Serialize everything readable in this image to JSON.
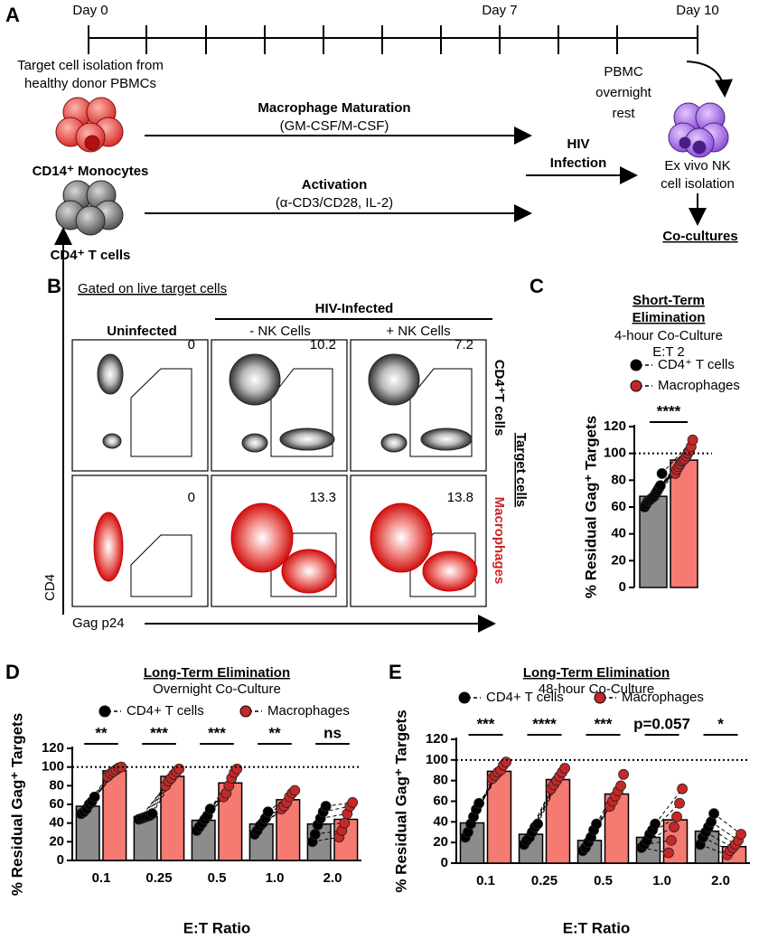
{
  "panel_a": {
    "letter": "A",
    "days": [
      "Day 0",
      "Day 7",
      "Day 10"
    ],
    "isolation": [
      "Target cell isolation from",
      "healthy donor PBMCs"
    ],
    "monocytes": "CD14⁺ Monocytes",
    "tcells": "CD4⁺ T cells",
    "maturation": "Macrophage Maturation",
    "maturation_detail": "(GM-CSF/M-CSF)",
    "activation": "Activation",
    "activation_detail": "(α-CD3/CD28, IL-2)",
    "infection": [
      "HIV",
      "Infection"
    ],
    "rest": [
      "PBMC",
      "overnight",
      "rest"
    ],
    "nk": [
      "Ex vivo NK",
      "cell isolation"
    ],
    "cocultures": "Co-cultures"
  },
  "panel_b": {
    "letter": "B",
    "gating": "Gated on live target cells",
    "infected": "HIV-Infected",
    "columns": [
      "Uninfected",
      "- NK Cells",
      "+ NK Cells"
    ],
    "rows": [
      "CD4⁺T cells",
      "Macrophages"
    ],
    "row_group": "Target cells",
    "y_axis": "CD4",
    "x_axis": "Gag p24",
    "gate_values": [
      [
        0,
        10.2,
        7.2
      ],
      [
        0,
        13.3,
        13.8
      ]
    ]
  },
  "chart_data": [
    {
      "type": "bar",
      "panel": "C",
      "title": [
        "Short-Term",
        "Elimination"
      ],
      "subtitle": "4-hour Co-Culture",
      "note": "E:T 2",
      "ylabel": "% Residual Gag⁺ Targets",
      "ylim": [
        0,
        120
      ],
      "yticks": [
        0,
        20,
        40,
        60,
        80,
        100,
        120
      ],
      "reference_line": 100,
      "significance": [
        "****"
      ],
      "series": [
        {
          "name": "CD4⁺ T cells",
          "color": "#8c8c8c",
          "point_color": "#000000",
          "values": [
            68
          ],
          "points": [
            [
              60,
              62,
              64,
              65,
              66,
              67,
              68,
              70,
              72,
              74,
              76,
              85
            ]
          ]
        },
        {
          "name": "Macrophages",
          "color": "#f47a72",
          "point_color": "#c62828",
          "values": [
            95
          ],
          "points": [
            [
              85,
              88,
              90,
              92,
              94,
              95,
              96,
              98,
              100,
              102,
              105,
              110
            ]
          ]
        }
      ]
    },
    {
      "type": "bar",
      "panel": "D",
      "title": "Long-Term Elimination",
      "subtitle": "Overnight Co-Culture",
      "ylabel": "% Residual Gag⁺ Targets",
      "xlabel": "E:T Ratio",
      "categories": [
        "0.1",
        "0.25",
        "0.5",
        "1.0",
        "2.0"
      ],
      "ylim": [
        0,
        120
      ],
      "yticks": [
        0,
        20,
        40,
        60,
        80,
        100,
        120
      ],
      "reference_line": 100,
      "significance": [
        "**",
        "***",
        "***",
        "**",
        "ns"
      ],
      "series": [
        {
          "name": "CD4+ T cells",
          "color": "#8c8c8c",
          "point_color": "#000000",
          "values": [
            58,
            47,
            43,
            39,
            39
          ],
          "points": [
            [
              50,
              52,
              55,
              60,
              63,
              68
            ],
            [
              44,
              45,
              46,
              47,
              48,
              50
            ],
            [
              32,
              36,
              40,
              44,
              48,
              55
            ],
            [
              28,
              32,
              37,
              40,
              45,
              52
            ],
            [
              20,
              28,
              38,
              45,
              52,
              58
            ]
          ]
        },
        {
          "name": "Macrophages",
          "color": "#f47a72",
          "point_color": "#c62828",
          "values": [
            96,
            90,
            83,
            65,
            44
          ],
          "points": [
            [
              90,
              93,
              95,
              97,
              99,
              100
            ],
            [
              80,
              85,
              88,
              92,
              95,
              98
            ],
            [
              68,
              72,
              80,
              88,
              94,
              98
            ],
            [
              55,
              58,
              62,
              68,
              72,
              75
            ],
            [
              25,
              32,
              40,
              50,
              58,
              62
            ]
          ]
        }
      ]
    },
    {
      "type": "bar",
      "panel": "E",
      "title": "Long-Term Elimination",
      "subtitle": "48-hour Co-Culture",
      "ylabel": "% Residual Gag⁺ Targets",
      "xlabel": "E:T Ratio",
      "categories": [
        "0.1",
        "0.25",
        "0.5",
        "1.0",
        "2.0"
      ],
      "ylim": [
        0,
        120
      ],
      "yticks": [
        0,
        20,
        40,
        60,
        80,
        100,
        120
      ],
      "reference_line": 100,
      "significance": [
        "***",
        "****",
        "***",
        "p=0.057",
        "*"
      ],
      "series": [
        {
          "name": "CD4+ T cells",
          "color": "#8c8c8c",
          "point_color": "#000000",
          "values": [
            39,
            28,
            22,
            25,
            31
          ],
          "points": [
            [
              25,
              30,
              38,
              45,
              52,
              58
            ],
            [
              18,
              22,
              25,
              30,
              35,
              38
            ],
            [
              12,
              15,
              20,
              25,
              32,
              38
            ],
            [
              15,
              18,
              22,
              28,
              32,
              38
            ],
            [
              18,
              25,
              30,
              35,
              40,
              48
            ]
          ]
        },
        {
          "name": "Macrophages",
          "color": "#f47a72",
          "point_color": "#c62828",
          "values": [
            89,
            81,
            67,
            42,
            16
          ],
          "points": [
            [
              82,
              85,
              88,
              90,
              95,
              98
            ],
            [
              72,
              76,
              80,
              84,
              88,
              92
            ],
            [
              55,
              60,
              65,
              70,
              75,
              86
            ],
            [
              10,
              22,
              35,
              45,
              58,
              72
            ],
            [
              8,
              12,
              15,
              18,
              22,
              28
            ]
          ]
        }
      ]
    }
  ]
}
